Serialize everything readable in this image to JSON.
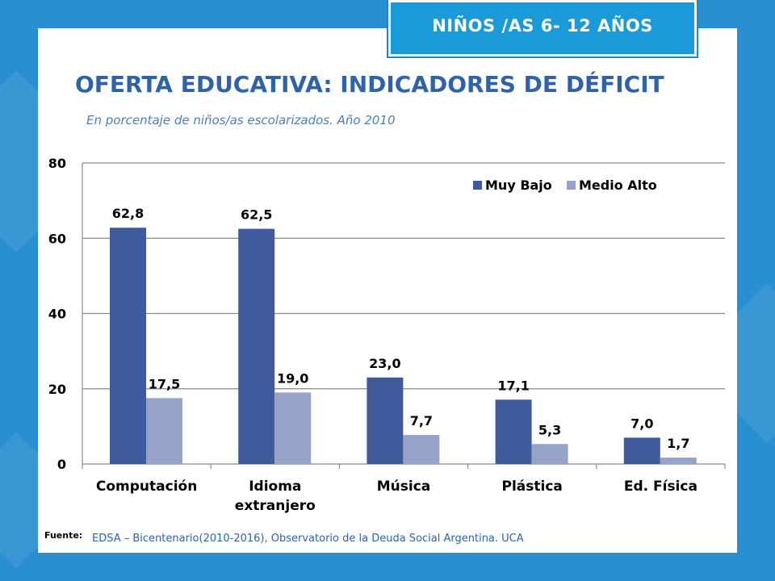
{
  "header": {
    "tag": "NIÑOS /AS 6- 12 AÑOS",
    "title": "OFERTA EDUCATIVA: INDICADORES DE DÉFICIT",
    "subtitle": "En porcentaje de niños/as escolarizados. Año 2010"
  },
  "footer": {
    "source_label": "Fuente:",
    "source_text": "EDSA – Bicentenario(2010-2016), Observatorio de la Deuda Social Argentina. UCA"
  },
  "colors": {
    "background": "#2a8fd0",
    "title": "#2e63a8",
    "series_dark": "#3f5b9c",
    "series_light": "#95a3c9"
  },
  "chart_data": {
    "type": "bar",
    "title": "",
    "xlabel": "",
    "ylabel": "",
    "ylim": [
      0,
      80
    ],
    "yticks": [
      0,
      20,
      40,
      60,
      80
    ],
    "grid": true,
    "legend_position": "top-right",
    "categories": [
      [
        "Computación"
      ],
      [
        "Idioma",
        "extranjero"
      ],
      [
        "Música"
      ],
      [
        "Plástica"
      ],
      [
        "Ed. Física"
      ]
    ],
    "series": [
      {
        "name": "Muy Bajo",
        "color": "#3f5b9c",
        "values": [
          62.8,
          62.5,
          23.0,
          17.1,
          7.0
        ],
        "labels": [
          "62,8",
          "62,5",
          "23,0",
          "17,1",
          "7,0"
        ]
      },
      {
        "name": "Medio Alto",
        "color": "#95a3c9",
        "values": [
          17.5,
          19.0,
          7.7,
          5.3,
          1.7
        ],
        "labels": [
          "17,5",
          "19,0",
          "7,7",
          "5,3",
          "1,7"
        ]
      }
    ]
  }
}
